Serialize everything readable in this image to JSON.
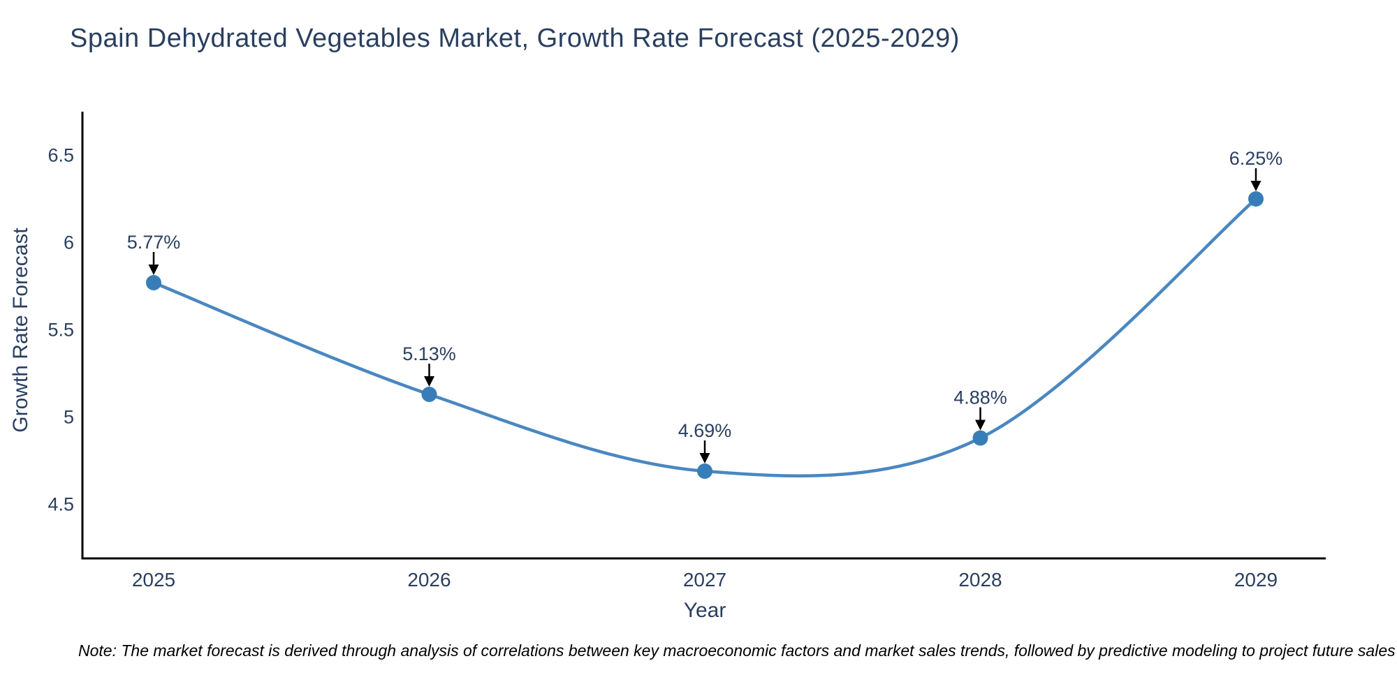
{
  "chart_data": {
    "type": "line",
    "title": "Spain Dehydrated Vegetables Market, Growth Rate Forecast (2025-2029)",
    "xlabel": "Year",
    "ylabel": "Growth Rate Forecast",
    "categories": [
      "2025",
      "2026",
      "2027",
      "2028",
      "2029"
    ],
    "series": [
      {
        "name": "Growth Rate Forecast",
        "values": [
          5.77,
          5.13,
          4.69,
          4.88,
          6.25
        ],
        "point_labels": [
          "5.77%",
          "5.13%",
          "4.69%",
          "4.88%",
          "6.25%"
        ]
      }
    ],
    "y_ticks": [
      6.5,
      6,
      5.5,
      5,
      4.5
    ],
    "ylim": [
      4.19,
      6.75
    ],
    "line_shape": "spline",
    "grid": false,
    "legend": false,
    "colors": {
      "line": "#4a87c0",
      "marker": "#377eb8",
      "text": "#2a3f5f",
      "axis": "#000000",
      "arrow": "#000000",
      "background": "#ffffff"
    },
    "note": "Note: The market forecast is derived through analysis of correlations between key macroeconomic factors and market sales trends, followed by predictive modeling to project future sales"
  }
}
